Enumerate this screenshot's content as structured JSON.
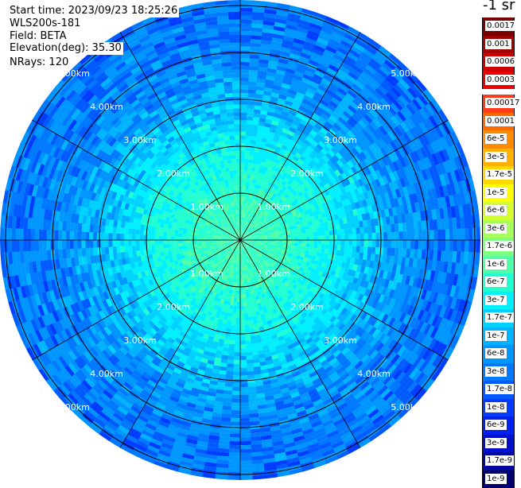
{
  "header": {
    "start_time": "Start time: 2023/09/23 18:25:26",
    "station": "WLS200s-181",
    "field": "Field: BETA",
    "elevation": "Elevation(deg): 35.30",
    "nrays": "NRays: 120"
  },
  "units_label": "-1 sr",
  "chart_data": {
    "type": "heatmap",
    "projection": "polar (PPI scan)",
    "field": "BETA",
    "n_rays": 120,
    "elevation_deg": 35.3,
    "max_range_km": 5.3,
    "range_ring_labels": [
      "1.00km",
      "2.00km",
      "3.00km",
      "4.00km",
      "5.00km"
    ],
    "range_rings_km": [
      1,
      2,
      3,
      4,
      5
    ],
    "azimuth_spokes_deg": [
      0,
      30,
      60,
      90,
      120,
      150,
      180,
      210,
      240,
      270,
      300,
      330
    ],
    "colorbar": {
      "scale": "log",
      "upper_block": [
        {
          "label": "0.0017",
          "color": "#7a0000"
        },
        {
          "label": "0.001",
          "color": "#a30000"
        },
        {
          "label": "0.0006",
          "color": "#cc0000"
        },
        {
          "label": "0.0003",
          "color": "#f00000"
        }
      ],
      "lower_block": [
        {
          "label": "0.00017",
          "color": "#ff3c1a"
        },
        {
          "label": "0.0001",
          "color": "#ff6a00"
        },
        {
          "label": "6e-5",
          "color": "#ff8c00"
        },
        {
          "label": "3e-5",
          "color": "#ffb000"
        },
        {
          "label": "1.7e-5",
          "color": "#ffd800"
        },
        {
          "label": "1e-5",
          "color": "#ffff00"
        },
        {
          "label": "6e-6",
          "color": "#d4ff2e"
        },
        {
          "label": "3e-6",
          "color": "#a6ff5a"
        },
        {
          "label": "1.7e-6",
          "color": "#80ff80"
        },
        {
          "label": "1e-6",
          "color": "#50ffa6"
        },
        {
          "label": "6e-7",
          "color": "#20ffd2"
        },
        {
          "label": "3e-7",
          "color": "#00f0ff"
        },
        {
          "label": "1.7e-7",
          "color": "#00d2ff"
        },
        {
          "label": "1e-7",
          "color": "#00b4ff"
        },
        {
          "label": "6e-8",
          "color": "#0096ff"
        },
        {
          "label": "3e-8",
          "color": "#0078ff"
        },
        {
          "label": "1.7e-8",
          "color": "#005aff"
        },
        {
          "label": "1e-8",
          "color": "#003cff"
        },
        {
          "label": "6e-9",
          "color": "#0020f0"
        },
        {
          "label": "3e-9",
          "color": "#0010c8"
        },
        {
          "label": "1.7e-9",
          "color": "#0008a0"
        },
        {
          "label": "1e-9",
          "color": "#000070"
        }
      ]
    },
    "radial_profile_log10": [
      {
        "range_km": 0.0,
        "log10_value": -6.2
      },
      {
        "range_km": 1.0,
        "log10_value": -6.3
      },
      {
        "range_km": 2.0,
        "log10_value": -6.6
      },
      {
        "range_km": 2.8,
        "log10_value": -7.0
      },
      {
        "range_km": 3.5,
        "log10_value": -7.4
      },
      {
        "range_km": 4.2,
        "log10_value": -7.6
      },
      {
        "range_km": 5.3,
        "log10_value": -7.7
      }
    ]
  }
}
